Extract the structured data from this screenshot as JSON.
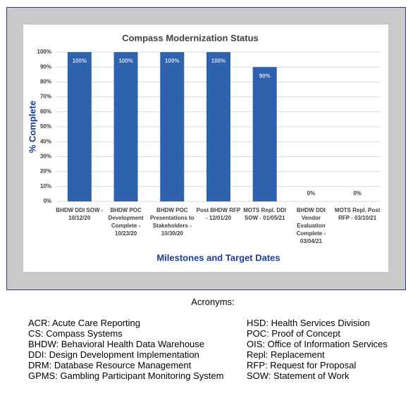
{
  "chart_data": {
    "type": "bar",
    "title": "Compass Modernization Status",
    "x_label": "Milestones and Target Dates",
    "y_label": "% Complete",
    "categories": [
      [
        "BHDW DDI SOW -",
        "10/12/20"
      ],
      [
        "BHDW POC",
        "Development",
        "Complete -",
        "10/23/20"
      ],
      [
        "BHDW POC",
        "Presentations to",
        "Stakeholders -",
        "10/30/20"
      ],
      [
        "Post BHDW RFP",
        "- 12/01/20"
      ],
      [
        "MOTS Repl. DDI",
        "SOW - 01/05/21"
      ],
      [
        "BHDW DDI",
        "Vendor",
        "Evaluation",
        "Complete -",
        "03/04/21"
      ],
      [
        "MOTS Repl. Post",
        "RFP - 03/10/21"
      ]
    ],
    "values": [
      100,
      100,
      100,
      100,
      90,
      0,
      0
    ],
    "value_labels": [
      "100%",
      "100%",
      "100%",
      "100%",
      "90%",
      "0%",
      "0%"
    ],
    "color": "#2f62ad",
    "ylim": [
      0,
      100
    ],
    "yticks": [
      {
        "value": 0,
        "label": "0%"
      },
      {
        "value": 10,
        "label": "10%"
      },
      {
        "value": 20,
        "label": "20%"
      },
      {
        "value": 30,
        "label": "30%"
      },
      {
        "value": 40,
        "label": "40%"
      },
      {
        "value": 50,
        "label": "50%"
      },
      {
        "value": 60,
        "label": "60%"
      },
      {
        "value": 70,
        "label": "70%"
      },
      {
        "value": 80,
        "label": "80%"
      },
      {
        "value": 90,
        "label": "90%"
      },
      {
        "value": 100,
        "label": "100%"
      }
    ],
    "grid": true
  },
  "acronyms": {
    "title": "Acronyms:",
    "left": [
      "ACR: Acute Care Reporting",
      "CS: Compass Systems",
      "BHDW: Behavioral Health Data Warehouse",
      "DDI: Design Development Implementation",
      "DRM: Database Resource Management",
      "GPMS: Gambling Participant Monitoring System"
    ],
    "right": [
      "HSD: Health Services Division",
      "POC: Proof of Concept",
      "OIS: Office of Information Services",
      "Repl: Replacement",
      "RFP: Request for Proposal",
      "SOW: Statement of Work"
    ]
  }
}
